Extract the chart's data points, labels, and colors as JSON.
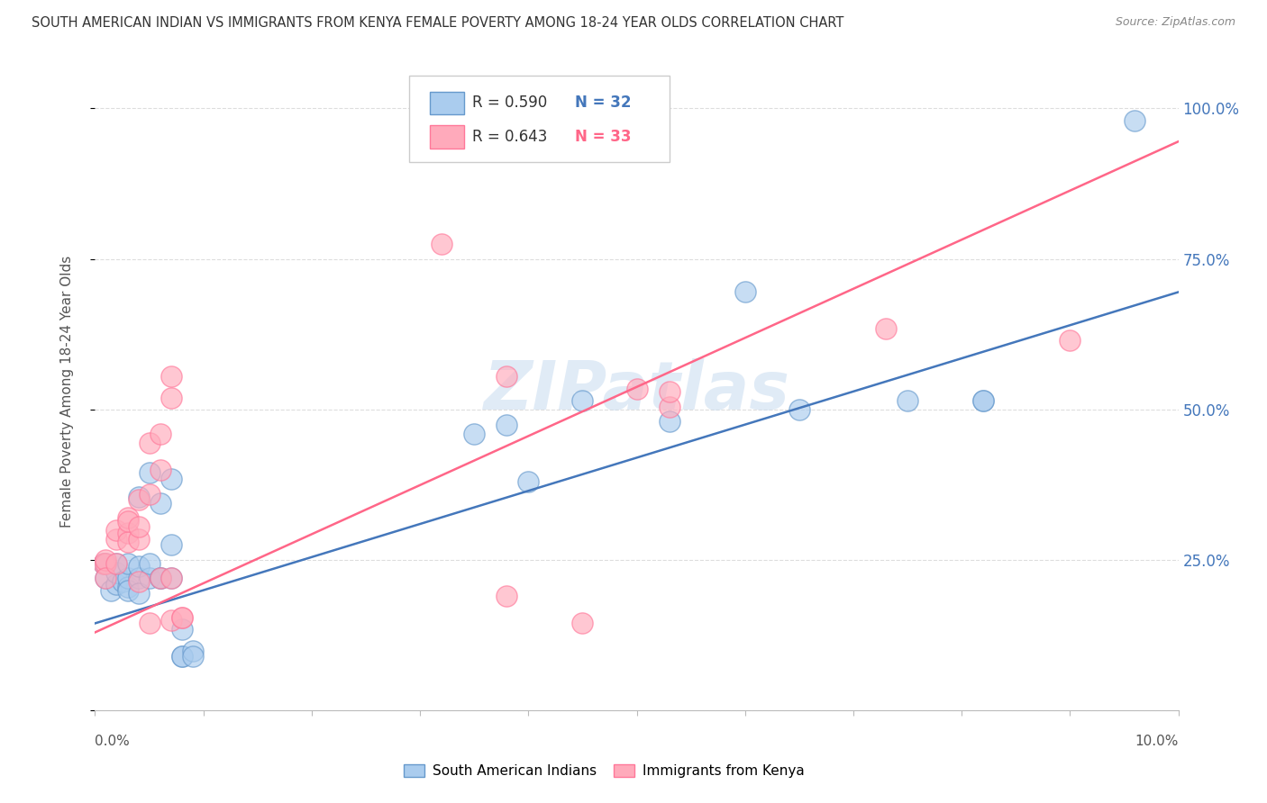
{
  "title": "SOUTH AMERICAN INDIAN VS IMMIGRANTS FROM KENYA FEMALE POVERTY AMONG 18-24 YEAR OLDS CORRELATION CHART",
  "source": "Source: ZipAtlas.com",
  "ylabel": "Female Poverty Among 18-24 Year Olds",
  "xmin": 0.0,
  "xmax": 0.1,
  "ymin": 0.0,
  "ymax": 1.06,
  "blue_R": 0.59,
  "blue_N": 32,
  "pink_R": 0.643,
  "pink_N": 33,
  "blue_color": "#AACCEE",
  "pink_color": "#FFAABB",
  "blue_edge_color": "#6699CC",
  "pink_edge_color": "#FF7799",
  "blue_line_color": "#4477BB",
  "pink_line_color": "#FF6688",
  "right_axis_color": "#4477BB",
  "blue_scatter_x": [
    0.0008,
    0.001,
    0.001,
    0.0015,
    0.002,
    0.002,
    0.002,
    0.0025,
    0.003,
    0.003,
    0.003,
    0.003,
    0.004,
    0.004,
    0.004,
    0.004,
    0.005,
    0.005,
    0.005,
    0.006,
    0.006,
    0.006,
    0.007,
    0.007,
    0.007,
    0.008,
    0.008,
    0.008,
    0.009,
    0.009,
    0.035,
    0.038,
    0.04,
    0.045,
    0.053,
    0.06,
    0.065,
    0.075,
    0.082,
    0.082,
    0.096
  ],
  "blue_scatter_y": [
    0.245,
    0.22,
    0.245,
    0.2,
    0.21,
    0.23,
    0.245,
    0.215,
    0.205,
    0.22,
    0.245,
    0.2,
    0.22,
    0.24,
    0.195,
    0.355,
    0.395,
    0.22,
    0.245,
    0.22,
    0.345,
    0.22,
    0.385,
    0.275,
    0.22,
    0.09,
    0.09,
    0.135,
    0.1,
    0.09,
    0.46,
    0.475,
    0.38,
    0.515,
    0.48,
    0.695,
    0.5,
    0.515,
    0.515,
    0.515,
    0.98
  ],
  "pink_scatter_x": [
    0.0008,
    0.001,
    0.001,
    0.001,
    0.002,
    0.002,
    0.002,
    0.003,
    0.003,
    0.003,
    0.003,
    0.004,
    0.004,
    0.004,
    0.004,
    0.005,
    0.005,
    0.005,
    0.006,
    0.006,
    0.006,
    0.007,
    0.007,
    0.007,
    0.007,
    0.008,
    0.008,
    0.032,
    0.038,
    0.038,
    0.045,
    0.05,
    0.053,
    0.053,
    0.073,
    0.09
  ],
  "pink_scatter_y": [
    0.245,
    0.245,
    0.25,
    0.22,
    0.285,
    0.245,
    0.3,
    0.295,
    0.32,
    0.28,
    0.315,
    0.285,
    0.305,
    0.35,
    0.215,
    0.36,
    0.445,
    0.145,
    0.46,
    0.4,
    0.22,
    0.555,
    0.52,
    0.15,
    0.22,
    0.155,
    0.155,
    0.775,
    0.555,
    0.19,
    0.145,
    0.535,
    0.505,
    0.53,
    0.635,
    0.615
  ],
  "blue_trend_x": [
    0.0,
    0.1
  ],
  "blue_trend_y": [
    0.145,
    0.695
  ],
  "pink_trend_x": [
    0.0,
    0.1
  ],
  "pink_trend_y": [
    0.13,
    0.945
  ],
  "watermark_text": "ZIPatlas",
  "background_color": "#FFFFFF",
  "grid_color": "#DDDDDD"
}
